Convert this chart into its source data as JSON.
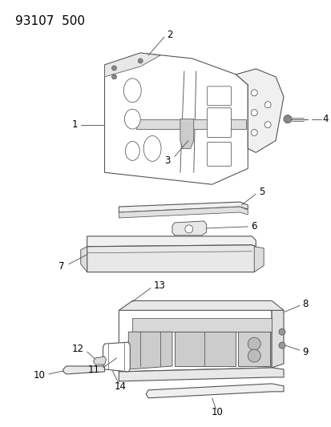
{
  "title": "93107  500",
  "bg_color": "#ffffff",
  "lc": "#555555",
  "lw": 0.8,
  "title_fontsize": 11,
  "label_fontsize": 8.5
}
